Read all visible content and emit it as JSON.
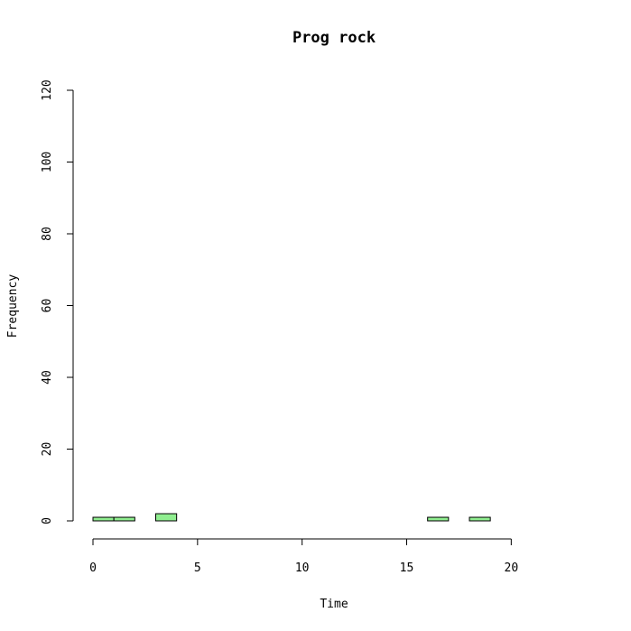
{
  "chart_data": {
    "type": "bar",
    "title": "Prog rock",
    "xlabel": "Time",
    "ylabel": "Frequency",
    "bar_color": "#90ee90",
    "bin_width": 1,
    "bins": [
      {
        "start": 0,
        "end": 1,
        "count": 1
      },
      {
        "start": 1,
        "end": 2,
        "count": 1
      },
      {
        "start": 2,
        "end": 3,
        "count": 0
      },
      {
        "start": 3,
        "end": 4,
        "count": 2
      },
      {
        "start": 4,
        "end": 5,
        "count": 0
      },
      {
        "start": 5,
        "end": 6,
        "count": 0
      },
      {
        "start": 6,
        "end": 7,
        "count": 0
      },
      {
        "start": 7,
        "end": 8,
        "count": 0
      },
      {
        "start": 8,
        "end": 9,
        "count": 0
      },
      {
        "start": 9,
        "end": 10,
        "count": 0
      },
      {
        "start": 10,
        "end": 11,
        "count": 0
      },
      {
        "start": 11,
        "end": 12,
        "count": 0
      },
      {
        "start": 12,
        "end": 13,
        "count": 0
      },
      {
        "start": 13,
        "end": 14,
        "count": 0
      },
      {
        "start": 14,
        "end": 15,
        "count": 0
      },
      {
        "start": 15,
        "end": 16,
        "count": 0
      },
      {
        "start": 16,
        "end": 17,
        "count": 1
      },
      {
        "start": 17,
        "end": 18,
        "count": 0
      },
      {
        "start": 18,
        "end": 19,
        "count": 1
      },
      {
        "start": 19,
        "end": 20,
        "count": 0
      },
      {
        "start": 20,
        "end": 21,
        "count": 0
      },
      {
        "start": 21,
        "end": 22,
        "count": 0
      },
      {
        "start": 22,
        "end": 23,
        "count": 0
      },
      {
        "start": 23,
        "end": 24,
        "count": 0
      }
    ],
    "xlim": [
      0,
      24
    ],
    "ylim": [
      0,
      120
    ],
    "xticks": [
      0,
      5,
      10,
      15,
      20
    ],
    "yticks": [
      0,
      20,
      40,
      60,
      80,
      100,
      120
    ],
    "grid": false,
    "legend": "none"
  }
}
